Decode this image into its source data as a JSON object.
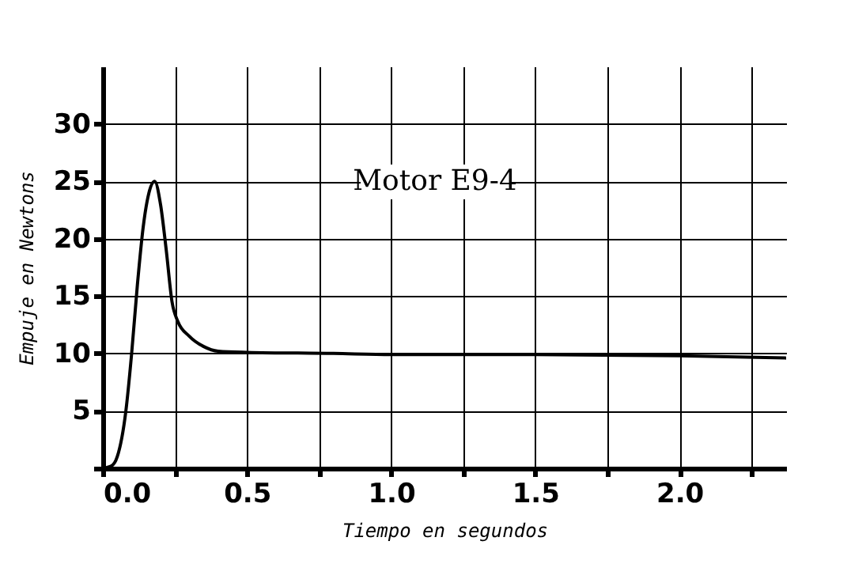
{
  "chart_data": {
    "type": "line",
    "xlabel": "Tiempo en segundos",
    "ylabel": "Empuje en Newtons",
    "annotations": [
      "Motor E9-4"
    ],
    "x": [
      0,
      0.03,
      0.05,
      0.08,
      0.1,
      0.12,
      0.14,
      0.16,
      0.18,
      0.2,
      0.22,
      0.24,
      0.26,
      0.3,
      0.35,
      0.4,
      0.5,
      0.8,
      1.0,
      1.5,
      2.0,
      2.37
    ],
    "series": [
      {
        "color": "#000000",
        "values": [
          0,
          0.2,
          1,
          5,
          10,
          16,
          21,
          24,
          25,
          23,
          19,
          14.5,
          12.8,
          11.5,
          10.6,
          10.2,
          10.1,
          10,
          9.9,
          9.9,
          9.8,
          9.6
        ]
      }
    ],
    "xlim": [
      0,
      2.37
    ],
    "ylim": [
      0,
      35
    ],
    "xticks": [
      {
        "value": 0,
        "label": "0.0"
      },
      {
        "value": 0.25,
        "label": null
      },
      {
        "value": 0.5,
        "label": "0.5"
      },
      {
        "value": 0.75,
        "label": null
      },
      {
        "value": 1,
        "label": "1.0"
      },
      {
        "value": 1.25,
        "label": null
      },
      {
        "value": 1.5,
        "label": "1.5"
      },
      {
        "value": 1.75,
        "label": null
      },
      {
        "value": 2,
        "label": "2.0"
      },
      {
        "value": 2.25,
        "label": null
      }
    ],
    "yticks": [
      {
        "value": 0,
        "label": null
      },
      5,
      10,
      15,
      20,
      25,
      30
    ],
    "grid": true,
    "marker": "none",
    "line_style": "solid"
  }
}
